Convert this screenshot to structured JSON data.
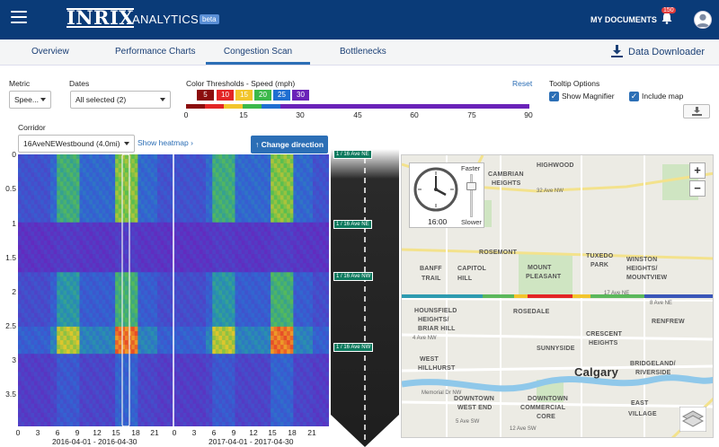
{
  "header": {
    "logo": "INRIX",
    "product": "ANALYTICS",
    "beta": "beta",
    "my_documents": "MY DOCUMENTS",
    "notification_count": "150"
  },
  "tabs": [
    {
      "label": "Overview"
    },
    {
      "label": "Performance Charts"
    },
    {
      "label": "Congestion Scan"
    },
    {
      "label": "Bottlenecks"
    }
  ],
  "active_tab": "Congestion Scan",
  "downloader": "Data Downloader",
  "controls": {
    "metric_label": "Metric",
    "metric_value": "Spee...",
    "dates_label": "Dates",
    "dates_value": "All selected (2)",
    "thresholds_label": "Color Thresholds - Speed (mph)",
    "reset": "Reset",
    "thresholds": [
      {
        "value": "5",
        "color": "#8b0d0d"
      },
      {
        "value": "10",
        "color": "#e32525"
      },
      {
        "value": "15",
        "color": "#f2c52c"
      },
      {
        "value": "20",
        "color": "#3bb84a"
      },
      {
        "value": "25",
        "color": "#1f6fd1"
      },
      {
        "value": "30",
        "color": "#6a22b8"
      }
    ],
    "scale_ticks": [
      "0",
      "15",
      "30",
      "45",
      "60",
      "75",
      "90"
    ],
    "tooltip_label": "Tooltip Options",
    "show_magnifier": "Show Magnifier",
    "include_map": "Include map",
    "corridor_label": "Corridor",
    "corridor_value": "16AveNEWestbound (4.0mi)",
    "show_heatmap": "Show heatmap",
    "change_direction": "Change direction"
  },
  "heatmap": {
    "y_labels": [
      "0",
      "0.5",
      "1",
      "1.5",
      "2",
      "2.5",
      "3",
      "3.5"
    ],
    "x_labels_1": [
      "0",
      "3",
      "6",
      "9",
      "12",
      "15",
      "18",
      "21"
    ],
    "x_labels_2": [
      "0",
      "3",
      "6",
      "9",
      "12",
      "15",
      "18",
      "21"
    ],
    "range_1": "2016-04-01 - 2016-04-30",
    "range_2": "2017-04-01 - 2017-04-30"
  },
  "road_labels": [
    "1 / 16 Ave NE",
    "1 / 16 Ave NE",
    "1 / 16 Ave NW",
    "1 / 16 Ave NW"
  ],
  "map": {
    "clock_time": "16:00",
    "faster": "Faster",
    "slower": "Slower",
    "zoom_in": "+",
    "zoom_out": "−",
    "labels": [
      {
        "text": "HIGHWOOD",
        "cls": "mt"
      },
      {
        "text": "CAMBRIAN",
        "cls": "mt"
      },
      {
        "text": "HEIGHTS",
        "cls": "mt"
      },
      {
        "text": "ROSEMONT",
        "cls": "mt"
      },
      {
        "text": "MOUNT",
        "cls": "mt"
      },
      {
        "text": "PLEASANT",
        "cls": "mt"
      },
      {
        "text": "TUXEDO",
        "cls": "mt"
      },
      {
        "text": "PARK",
        "cls": "mt"
      },
      {
        "text": "WINSTON",
        "cls": "mt"
      },
      {
        "text": "HEIGHTS/",
        "cls": "mt"
      },
      {
        "text": "MOUNTVIEW",
        "cls": "mt"
      },
      {
        "text": "BANFF",
        "cls": "mt"
      },
      {
        "text": "CAPITOL",
        "cls": "mt"
      },
      {
        "text": "TRAIL",
        "cls": "mt"
      },
      {
        "text": "HILL",
        "cls": "mt"
      },
      {
        "text": "HOUNSFIELD",
        "cls": "mt"
      },
      {
        "text": "HEIGHTS/",
        "cls": "mt"
      },
      {
        "text": "BRIAR HILL",
        "cls": "mt"
      },
      {
        "text": "ROSEDALE",
        "cls": "mt"
      },
      {
        "text": "RENFREW",
        "cls": "mt"
      },
      {
        "text": "CRESCENT",
        "cls": "mt"
      },
      {
        "text": "HEIGHTS",
        "cls": "mt"
      },
      {
        "text": "SUNNYSIDE",
        "cls": "mt"
      },
      {
        "text": "WEST",
        "cls": "mt"
      },
      {
        "text": "HILLHURST",
        "cls": "mt"
      },
      {
        "text": "BRIDGELAND/",
        "cls": "mt"
      },
      {
        "text": "RIVERSIDE",
        "cls": "mt"
      },
      {
        "text": "Calgary",
        "cls": "mt city"
      },
      {
        "text": "DOWNTOWN",
        "cls": "mt"
      },
      {
        "text": "WEST END",
        "cls": "mt"
      },
      {
        "text": "DOWNTOWN",
        "cls": "mt"
      },
      {
        "text": "COMMERCIAL",
        "cls": "mt"
      },
      {
        "text": "CORE",
        "cls": "mt"
      },
      {
        "text": "EAST",
        "cls": "mt"
      },
      {
        "text": "VILLAGE",
        "cls": "mt"
      },
      {
        "text": "32 Ave NW",
        "cls": "mts"
      },
      {
        "text": "17 Ave NE",
        "cls": "mts"
      },
      {
        "text": "Memorial Dr NW",
        "cls": "mts"
      },
      {
        "text": "4 Ave NW",
        "cls": "mts"
      },
      {
        "text": "8 Ave NE",
        "cls": "mts"
      },
      {
        "text": "5 Ave SW",
        "cls": "mts"
      },
      {
        "text": "12 Ave SW",
        "cls": "mts"
      }
    ]
  }
}
